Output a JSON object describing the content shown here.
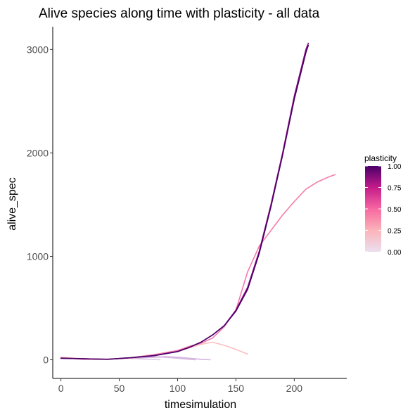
{
  "chart_data": {
    "type": "line",
    "title": "Alive species along time with plasticity - all data",
    "xlabel": "timesimulation",
    "ylabel": "alive_spec",
    "xlim": [
      -7,
      245
    ],
    "ylim": [
      -180,
      3220
    ],
    "xticks": [
      0,
      50,
      100,
      150,
      200
    ],
    "yticks": [
      0,
      1000,
      2000,
      3000
    ],
    "grid": false,
    "legend": {
      "title": "plasticity",
      "placement": "right",
      "type": "colorbar",
      "ticks": [
        1.0,
        0.75,
        0.5,
        0.25,
        0.0
      ],
      "tick_labels": [
        "1.00",
        "0.75",
        "0.50",
        "0.25",
        "0.00"
      ],
      "colors": [
        "#ebdff0",
        "#fbb4b9",
        "#f768a1",
        "#c51b8a",
        "#49006a"
      ]
    },
    "series": [
      {
        "plasticity": 0.0,
        "color": "#e2cde8",
        "x": [
          60,
          70,
          80,
          85
        ],
        "y": [
          12,
          8,
          3,
          0
        ]
      },
      {
        "plasticity": 0.1,
        "color": "#d6bcdf",
        "x": [
          50,
          60,
          70,
          80,
          90,
          100,
          110,
          115
        ],
        "y": [
          15,
          20,
          25,
          30,
          25,
          15,
          5,
          0
        ]
      },
      {
        "plasticity": 0.15,
        "color": "#d3b4dd",
        "x": [
          60,
          70,
          80,
          90,
          100,
          110,
          120,
          128
        ],
        "y": [
          15,
          20,
          25,
          30,
          25,
          15,
          5,
          0
        ]
      },
      {
        "plasticity": 0.3,
        "color": "#fbbfc0",
        "x": [
          0,
          20,
          40,
          60,
          80,
          100,
          110,
          120,
          130,
          140,
          150,
          160
        ],
        "y": [
          25,
          10,
          8,
          15,
          50,
          80,
          115,
          150,
          170,
          140,
          100,
          55
        ]
      },
      {
        "plasticity": 0.5,
        "color": "#f37cab",
        "x": [
          0,
          20,
          40,
          60,
          80,
          100,
          110,
          120,
          130,
          140,
          150,
          160,
          170,
          180,
          190,
          200,
          210,
          220,
          230,
          235
        ],
        "y": [
          20,
          5,
          5,
          20,
          50,
          90,
          130,
          160,
          210,
          320,
          480,
          850,
          1100,
          1250,
          1400,
          1530,
          1650,
          1720,
          1770,
          1790
        ]
      },
      {
        "plasticity": 0.9,
        "color": "#8a0b7e",
        "x": [
          0,
          20,
          40,
          60,
          80,
          100,
          110,
          120,
          130,
          140,
          150,
          160,
          170,
          180,
          190,
          200,
          210,
          212
        ],
        "y": [
          15,
          10,
          5,
          20,
          40,
          80,
          120,
          170,
          240,
          330,
          480,
          700,
          1050,
          1500,
          2000,
          2550,
          3000,
          3060
        ]
      },
      {
        "plasticity": 1.0,
        "color": "#49006a",
        "x": [
          0,
          20,
          40,
          60,
          80,
          100,
          110,
          120,
          130,
          140,
          150,
          160,
          170,
          180,
          190,
          200,
          210,
          212
        ],
        "y": [
          15,
          10,
          5,
          20,
          40,
          80,
          120,
          170,
          240,
          330,
          470,
          680,
          1030,
          1480,
          1980,
          2520,
          2970,
          3040
        ]
      }
    ]
  }
}
